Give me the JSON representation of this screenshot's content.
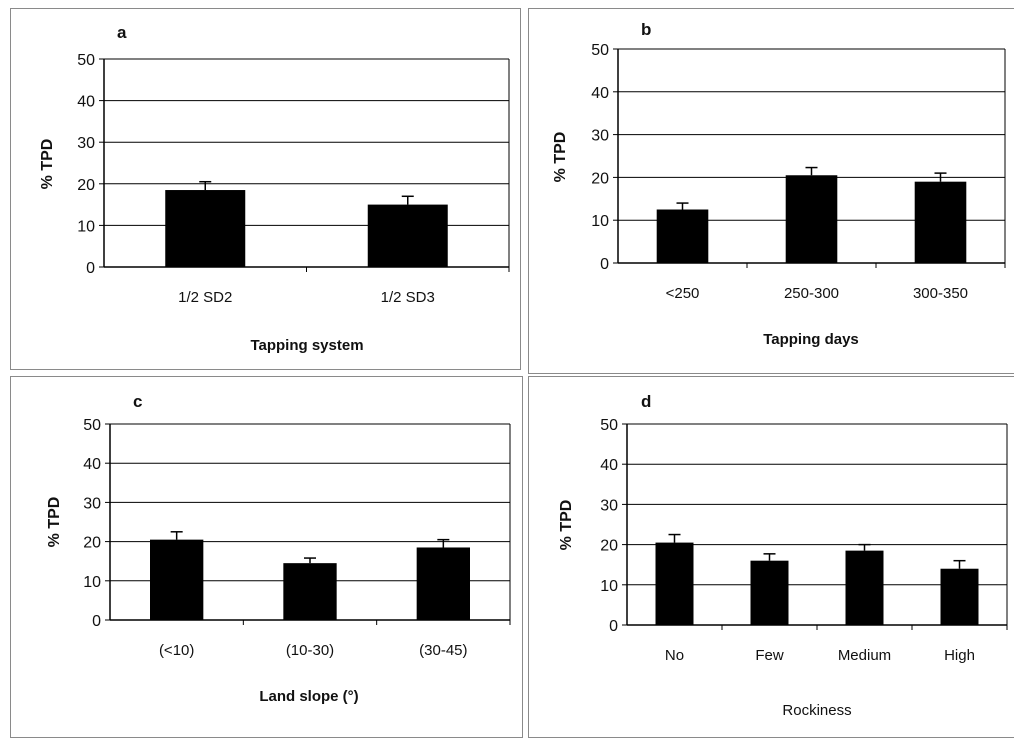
{
  "chart_data": [
    {
      "panel": "a",
      "type": "bar",
      "ylabel": "% TPD",
      "xlabel": "Tapping system",
      "categories": [
        "1/2 SD2",
        "1/2 SD3"
      ],
      "values": [
        18.5,
        15
      ],
      "errors": [
        2,
        2
      ],
      "ylim": [
        0,
        50
      ],
      "yticks": [
        "0",
        "10",
        "20",
        "30",
        "40",
        "50"
      ],
      "grid": true,
      "bar_color": "#000000"
    },
    {
      "panel": "b",
      "type": "bar",
      "ylabel": "% TPD",
      "xlabel": "Tapping days",
      "categories": [
        "<250",
        "250-300",
        "300-350"
      ],
      "values": [
        12.5,
        20.5,
        19
      ],
      "errors": [
        1.5,
        1.8,
        2
      ],
      "ylim": [
        0,
        50
      ],
      "yticks": [
        "0",
        "10",
        "20",
        "30",
        "40",
        "50"
      ],
      "grid": true,
      "bar_color": "#000000"
    },
    {
      "panel": "c",
      "type": "bar",
      "ylabel": "% TPD",
      "xlabel": "Land slope (°)",
      "categories": [
        "(<10)",
        "(10-30)",
        "(30-45)"
      ],
      "values": [
        20.5,
        14.5,
        18.5
      ],
      "errors": [
        2,
        1.3,
        2
      ],
      "ylim": [
        0,
        50
      ],
      "yticks": [
        "0",
        "10",
        "20",
        "30",
        "40",
        "50"
      ],
      "grid": true,
      "bar_color": "#000000"
    },
    {
      "panel": "d",
      "type": "bar",
      "ylabel": "% TPD",
      "xlabel": "Rockiness",
      "categories": [
        "No",
        "Few",
        "Medium",
        "High"
      ],
      "values": [
        20.5,
        16,
        18.5,
        14
      ],
      "errors": [
        2,
        1.7,
        1.5,
        2
      ],
      "ylim": [
        0,
        50
      ],
      "yticks": [
        "0",
        "10",
        "20",
        "30",
        "40",
        "50"
      ],
      "grid": true,
      "bar_color": "#000000"
    }
  ]
}
